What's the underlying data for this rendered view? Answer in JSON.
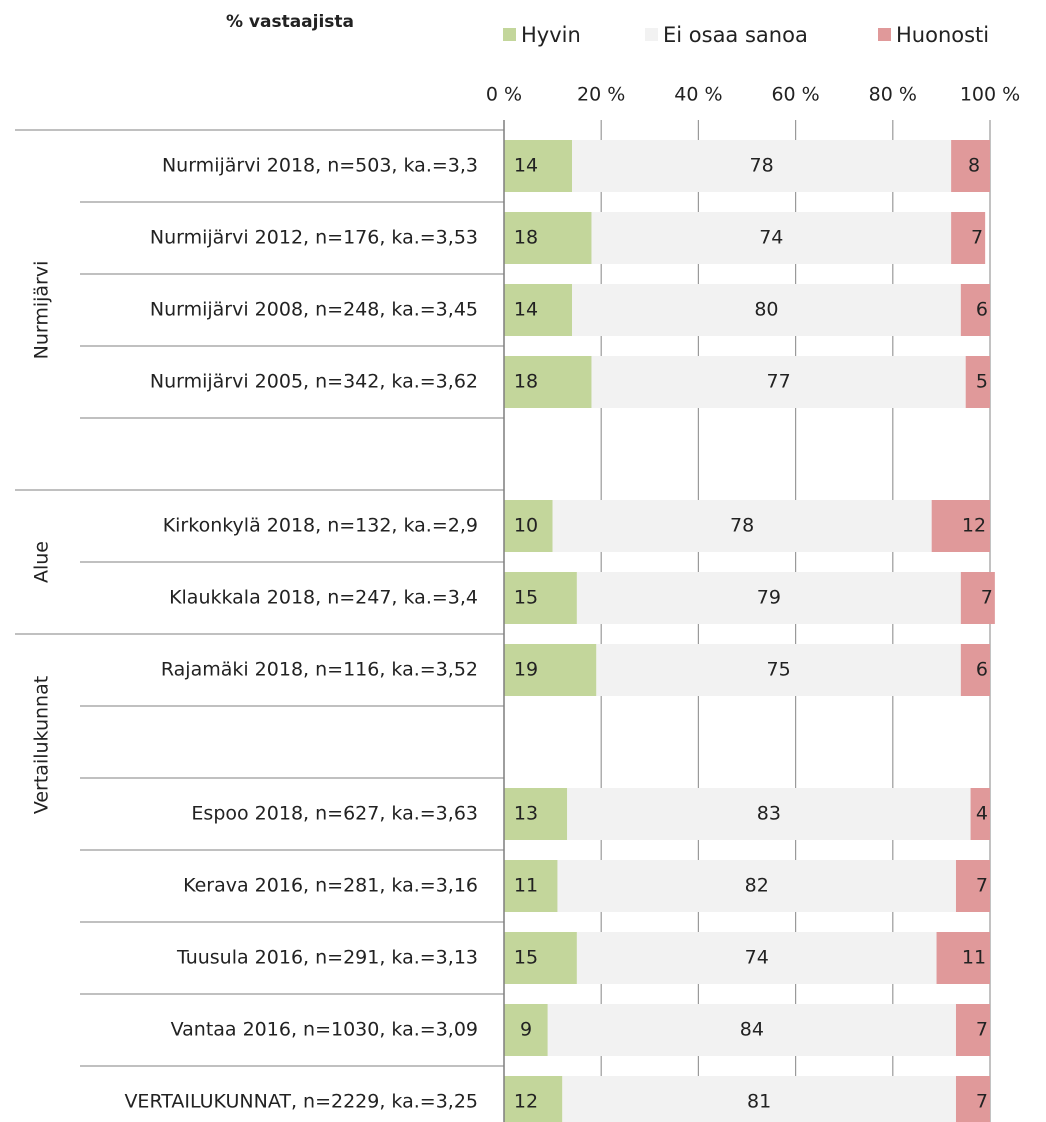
{
  "chart_data": {
    "type": "stacked_barh",
    "title": "% vastaajista",
    "categories": [
      "Nurmijärvi 2018, n=503, ka.=3,3",
      "Nurmijärvi 2012, n=176, ka.=3,53",
      "Nurmijärvi 2008, n=248, ka.=3,45",
      "Nurmijärvi 2005, n=342, ka.=3,62",
      null,
      "Kirkonkylä 2018, n=132, ka.=2,9",
      "Klaukkala 2018, n=247, ka.=3,4",
      "Rajamäki 2018, n=116, ka.=3,52",
      null,
      "Espoo 2018, n=627, ka.=3,63",
      "Kerava 2016, n=281, ka.=3,16",
      "Tuusula 2016, n=291, ka.=3,13",
      "Vantaa 2016, n=1030, ka.=3,09",
      "VERTAILUKUNNAT, n=2229, ka.=3,25"
    ],
    "groups": [
      "Nurmijärvi",
      "Alue",
      "Vertailukunnat"
    ],
    "series": [
      {
        "name": "Hyvin",
        "color": "#c3d69b",
        "values": [
          14,
          18,
          14,
          18,
          null,
          10,
          15,
          19,
          null,
          13,
          11,
          15,
          9,
          12
        ]
      },
      {
        "name": "Ei osaa sanoa",
        "color": "#f2f2f2",
        "values": [
          78,
          74,
          80,
          77,
          null,
          78,
          79,
          75,
          null,
          83,
          82,
          74,
          84,
          81
        ]
      },
      {
        "name": "Huonosti",
        "color": "#e0999a",
        "values": [
          8,
          7,
          6,
          5,
          null,
          12,
          7,
          6,
          null,
          4,
          7,
          11,
          7,
          7
        ]
      }
    ],
    "xlim": [
      0,
      100
    ],
    "xticks": [
      {
        "value": 0,
        "label": "0 %"
      },
      {
        "value": 20,
        "label": "20 %"
      },
      {
        "value": 40,
        "label": "40 %"
      },
      {
        "value": 60,
        "label": "60 %"
      },
      {
        "value": 80,
        "label": "80 %"
      },
      {
        "value": 100,
        "label": "100 %"
      }
    ],
    "grid": true,
    "legend": "top"
  }
}
